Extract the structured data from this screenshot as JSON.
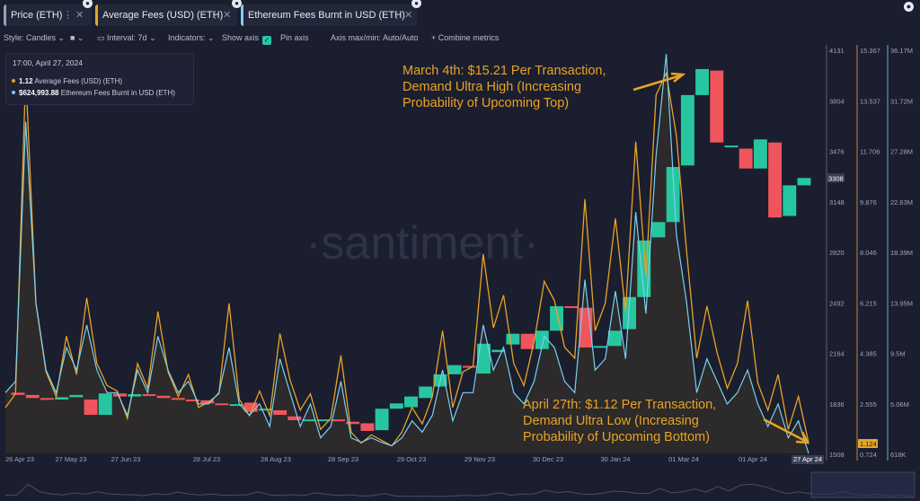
{
  "tabs": [
    {
      "label": "Price (ETH)",
      "color": "#9aa1b8"
    },
    {
      "label": "Average Fees (USD) (ETH)",
      "color": "#e8a327"
    },
    {
      "label": "Ethereum Fees Burnt in USD (ETH)",
      "color": "#7cd0ef"
    }
  ],
  "toolbar": {
    "style": "Style: Candles",
    "interval": "Interval: 7d",
    "indicators": "Indicators:",
    "show_axis": "Show axis",
    "pin_axis": "Pin axis",
    "axis_maxmin": "Axis max/min: Auto/Auto",
    "combine": "Combine metrics"
  },
  "tooltip": {
    "date": "17:00, April 27, 2024",
    "fees_value": "1.12",
    "fees_label": "Average Fees (USD) (ETH)",
    "burn_value": "$624,993.88",
    "burn_label": "Ethereum Fees Burnt in USD (ETH)"
  },
  "annotations": {
    "top": [
      "March 4th: $15.21 Per Transaction,",
      "Demand Ultra High (Increasing",
      "Probability of Upcoming Top)"
    ],
    "bottom": [
      "April 27th: $1.12 Per Transaction,",
      "Demand Ultra Low (Increasing",
      "Probability of Upcoming Bottom)"
    ]
  },
  "watermark": "·santiment·",
  "colors": {
    "up": "#26c7a0",
    "down": "#f0555e",
    "fees": "#e8a327",
    "burn": "#7cd0ef",
    "background": "#1b1e2e"
  },
  "chart_data": {
    "type": "candlestick+line",
    "x_ticks": [
      "26 Apr 23",
      "27 May 23",
      "27 Jun 23",
      "28 Jul 23",
      "28 Aug 23",
      "28 Sep 23",
      "29 Oct 23",
      "29 Nov 23",
      "30 Dec 23",
      "30 Jan 24",
      "01 Mar 24",
      "01 Apr 24",
      "27 Apr 24"
    ],
    "price_axis": {
      "ticks": [
        4131,
        3804,
        3476,
        3148,
        2820,
        2492,
        2164,
        1836,
        1508
      ],
      "ylim": [
        1508,
        4131
      ],
      "current": "3308"
    },
    "fees_axis": {
      "ticks": [
        "15.367",
        "13.537",
        "11.706",
        "9.876",
        "8.046",
        "6.215",
        "4.385",
        "2.555",
        "0.724"
      ],
      "ylim": [
        0.724,
        15.367
      ],
      "current": "1.124"
    },
    "burn_axis": {
      "ticks": [
        "36.17M",
        "31.72M",
        "27.28M",
        "22.63M",
        "18.39M",
        "13.95M",
        "9.5M",
        "5.06M",
        "618K"
      ],
      "ylim": [
        0.618,
        36.17
      ]
    },
    "candles": [
      {
        "o": 1905,
        "c": 1890
      },
      {
        "o": 1890,
        "c": 1870
      },
      {
        "o": 1870,
        "c": 1860
      },
      {
        "o": 1860,
        "c": 1875
      },
      {
        "o": 1875,
        "c": 1890
      },
      {
        "o": 1860,
        "c": 1760
      },
      {
        "o": 1760,
        "c": 1900
      },
      {
        "o": 1900,
        "c": 1880
      },
      {
        "o": 1880,
        "c": 1895
      },
      {
        "o": 1895,
        "c": 1885
      },
      {
        "o": 1885,
        "c": 1870
      },
      {
        "o": 1870,
        "c": 1860
      },
      {
        "o": 1860,
        "c": 1855
      },
      {
        "o": 1855,
        "c": 1835
      },
      {
        "o": 1835,
        "c": 1830
      },
      {
        "o": 1830,
        "c": 1830
      },
      {
        "o": 1840,
        "c": 1780
      },
      {
        "o": 1790,
        "c": 1800
      },
      {
        "o": 1790,
        "c": 1760
      },
      {
        "o": 1750,
        "c": 1725
      },
      {
        "o": 1725,
        "c": 1730
      },
      {
        "o": 1720,
        "c": 1730
      },
      {
        "o": 1730,
        "c": 1720
      },
      {
        "o": 1715,
        "c": 1700
      },
      {
        "o": 1705,
        "c": 1655
      },
      {
        "o": 1660,
        "c": 1800
      },
      {
        "o": 1800,
        "c": 1835
      },
      {
        "o": 1810,
        "c": 1880
      },
      {
        "o": 1870,
        "c": 1945
      },
      {
        "o": 1945,
        "c": 2025
      },
      {
        "o": 2025,
        "c": 2085
      },
      {
        "o": 2080,
        "c": 2070
      },
      {
        "o": 2030,
        "c": 2225
      },
      {
        "o": 2170,
        "c": 2185
      },
      {
        "o": 2220,
        "c": 2290
      },
      {
        "o": 2290,
        "c": 2190
      },
      {
        "o": 2190,
        "c": 2310
      },
      {
        "o": 2310,
        "c": 2470
      },
      {
        "o": 2470,
        "c": 2460
      },
      {
        "o": 2460,
        "c": 2200
      },
      {
        "o": 2200,
        "c": 2210
      },
      {
        "o": 2210,
        "c": 2310
      },
      {
        "o": 2320,
        "c": 2530
      },
      {
        "o": 2530,
        "c": 2900
      },
      {
        "o": 2920,
        "c": 3020
      },
      {
        "o": 3020,
        "c": 3380
      },
      {
        "o": 3390,
        "c": 3850
      },
      {
        "o": 3850,
        "c": 4020
      },
      {
        "o": 4010,
        "c": 3540
      },
      {
        "o": 3520,
        "c": 3520
      },
      {
        "o": 3500,
        "c": 3370
      },
      {
        "o": 3370,
        "c": 3560
      },
      {
        "o": 3540,
        "c": 3050
      },
      {
        "o": 3060,
        "c": 3260
      },
      {
        "o": 3260,
        "c": 3308
      }
    ],
    "fees_series": [
      2.4,
      2.9,
      14.6,
      6.2,
      3.7,
      2.8,
      5.0,
      3.6,
      6.4,
      4.0,
      3.2,
      3.0,
      2.0,
      4.0,
      3.1,
      5.9,
      3.7,
      2.8,
      3.6,
      2.4,
      2.6,
      2.9,
      6.2,
      2.7,
      2.1,
      3.0,
      2.1,
      5.1,
      3.4,
      2.3,
      2.9,
      1.6,
      2.0,
      4.3,
      1.5,
      1.1,
      1.4,
      1.2,
      1.0,
      1.5,
      2.4,
      1.8,
      2.8,
      5.2,
      2.4,
      3.7,
      3.9,
      8.0,
      5.3,
      6.5,
      4.0,
      3.2,
      4.8,
      7.0,
      6.3,
      4.6,
      4.2,
      10.0,
      5.2,
      6.2,
      9.3,
      5.9,
      12.1,
      7.2,
      13.8,
      14.6,
      12.3,
      8.1,
      4.2,
      6.1,
      4.4,
      3.1,
      4.0,
      6.3,
      3.3,
      2.3,
      3.6,
      1.6,
      2.8,
      1.12
    ],
    "burn_series_millions": [
      6.0,
      7.0,
      30.0,
      14.0,
      8.0,
      6.0,
      10.0,
      8.0,
      12.0,
      8.0,
      6.0,
      6.0,
      4.0,
      8.0,
      6.0,
      11.0,
      8.0,
      6.0,
      7.0,
      5.0,
      5.0,
      6.0,
      10.0,
      5.0,
      4.0,
      5.0,
      3.0,
      9.0,
      6.0,
      3.0,
      5.0,
      2.0,
      3.0,
      7.0,
      2.0,
      1.6,
      2.0,
      1.6,
      1.3,
      2.0,
      3.5,
      2.5,
      4.0,
      8.0,
      3.5,
      6.0,
      6.0,
      12.0,
      8.0,
      10.0,
      6.0,
      5.0,
      7.0,
      11.0,
      10.0,
      7.0,
      6.0,
      16.0,
      8.0,
      9.0,
      15.0,
      9.0,
      22.0,
      13.0,
      27.0,
      36.0,
      20.0,
      14.0,
      6.0,
      9.0,
      7.0,
      5.0,
      6.0,
      8.0,
      5.0,
      3.0,
      5.0,
      2.0,
      3.5,
      0.62
    ]
  }
}
